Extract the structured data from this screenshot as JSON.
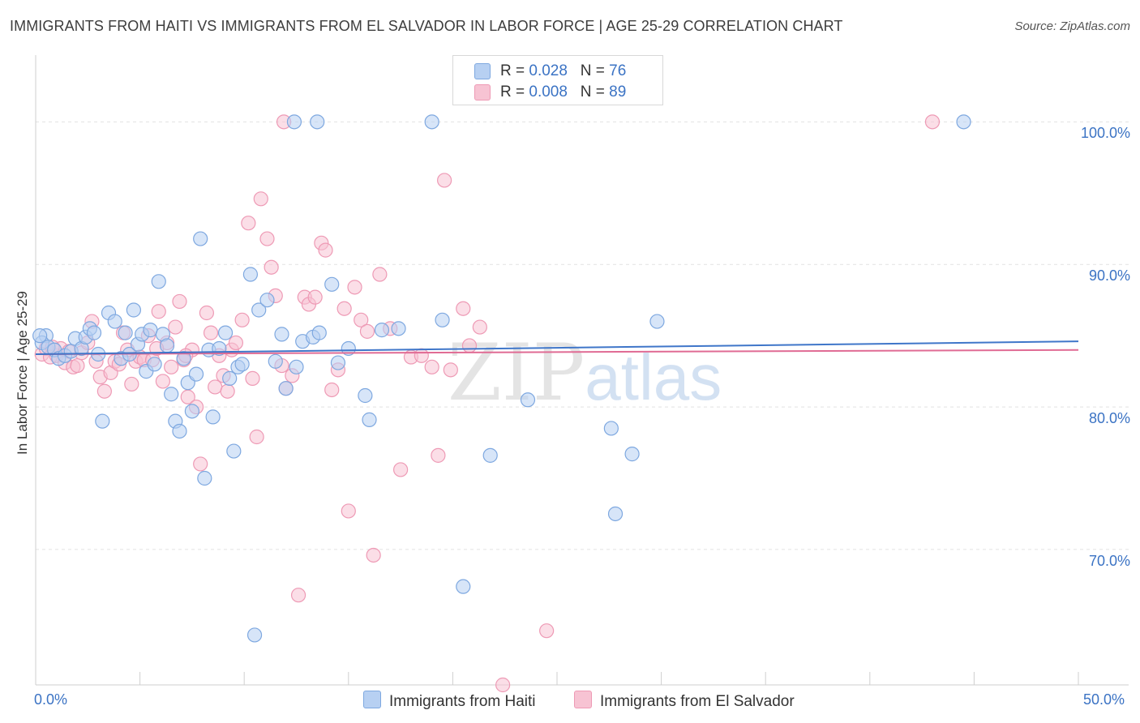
{
  "title": "IMMIGRANTS FROM HAITI VS IMMIGRANTS FROM EL SALVADOR IN LABOR FORCE | AGE 25-29 CORRELATION CHART",
  "source": "Source: ZipAtlas.com",
  "watermark": {
    "zip": "ZIP",
    "atlas": "atlas"
  },
  "legend": {
    "rows": [
      {
        "r_label": "R = ",
        "r_value": "0.028",
        "n_label": "N = ",
        "n_value": "76"
      },
      {
        "r_label": "R = ",
        "r_value": "0.008",
        "n_label": "N = ",
        "n_value": "89"
      }
    ]
  },
  "colors": {
    "haiti_fill": "#b7d0f2",
    "haiti_stroke": "#7ea8e0",
    "haiti_line": "#3f76c9",
    "salvador_fill": "#f7c3d3",
    "salvador_stroke": "#ee9ab5",
    "salvador_line": "#e06b94",
    "tick_label": "#3b73c4",
    "grid": "#e2e2e2"
  },
  "chart_data": {
    "type": "scatter",
    "xlabel": "",
    "ylabel": "In Labor Force | Age 25-29",
    "xlim": [
      0,
      50
    ],
    "ylim": [
      60.5,
      104
    ],
    "x_tick_labels": [
      "0.0%",
      "50.0%"
    ],
    "y_ticks": [
      70,
      80,
      90,
      100
    ],
    "y_tick_labels": [
      "70.0%",
      "80.0%",
      "90.0%",
      "100.0%"
    ],
    "grid": true,
    "series": [
      {
        "name": "Immigrants from Haiti",
        "trend": {
          "x": [
            0,
            50
          ],
          "y": [
            83.7,
            84.6
          ]
        },
        "points": [
          [
            0.5,
            85
          ],
          [
            0.3,
            84.5
          ],
          [
            0.6,
            84.2
          ],
          [
            0.9,
            84
          ],
          [
            1.1,
            83.4
          ],
          [
            1.4,
            83.6
          ],
          [
            1.7,
            83.9
          ],
          [
            1.9,
            84.8
          ],
          [
            2.2,
            84.1
          ],
          [
            2.4,
            84.9
          ],
          [
            2.6,
            85.5
          ],
          [
            2.8,
            85.2
          ],
          [
            3,
            83.7
          ],
          [
            3.2,
            79
          ],
          [
            3.5,
            86.6
          ],
          [
            3.8,
            86
          ],
          [
            4.1,
            83.4
          ],
          [
            4.3,
            85.2
          ],
          [
            4.5,
            83.7
          ],
          [
            4.7,
            86.8
          ],
          [
            4.9,
            84.4
          ],
          [
            5.1,
            85.1
          ],
          [
            5.3,
            82.5
          ],
          [
            5.5,
            85.4
          ],
          [
            5.7,
            83
          ],
          [
            5.9,
            88.8
          ],
          [
            6.1,
            85.1
          ],
          [
            6.3,
            84.3
          ],
          [
            6.5,
            80.9
          ],
          [
            6.7,
            79
          ],
          [
            6.9,
            78.3
          ],
          [
            7.1,
            83.4
          ],
          [
            7.3,
            81.7
          ],
          [
            7.5,
            79.7
          ],
          [
            7.7,
            82.3
          ],
          [
            7.9,
            91.8
          ],
          [
            8.1,
            75
          ],
          [
            8.3,
            84
          ],
          [
            8.5,
            79.3
          ],
          [
            8.8,
            84.1
          ],
          [
            9.1,
            85.2
          ],
          [
            9.3,
            82
          ],
          [
            9.5,
            76.9
          ],
          [
            9.7,
            82.8
          ],
          [
            9.9,
            83
          ],
          [
            10.3,
            89.3
          ],
          [
            10.7,
            86.8
          ],
          [
            11.1,
            87.5
          ],
          [
            11.5,
            83.2
          ],
          [
            11.8,
            85.1
          ],
          [
            12,
            81.3
          ],
          [
            12.5,
            82.8
          ],
          [
            12.8,
            84.6
          ],
          [
            13.3,
            84.9
          ],
          [
            13.6,
            85.2
          ],
          [
            14.2,
            88.6
          ],
          [
            14.5,
            83.1
          ],
          [
            15,
            84.1
          ],
          [
            15.8,
            80.8
          ],
          [
            16,
            79.1
          ],
          [
            16.6,
            85.4
          ],
          [
            17.4,
            85.5
          ],
          [
            19.5,
            86.1
          ],
          [
            20.5,
            67.4
          ],
          [
            21.8,
            76.6
          ],
          [
            23.6,
            80.5
          ],
          [
            27.6,
            78.5
          ],
          [
            27.8,
            72.5
          ],
          [
            28.6,
            76.7
          ],
          [
            29.8,
            86
          ],
          [
            10.5,
            64
          ],
          [
            12.4,
            100
          ],
          [
            13.5,
            100
          ],
          [
            19,
            100
          ],
          [
            44.5,
            100
          ],
          [
            0.2,
            85
          ]
        ]
      },
      {
        "name": "Immigrants from El Salvador",
        "trend": {
          "x": [
            0,
            50
          ],
          "y": [
            83.7,
            84
          ]
        },
        "points": [
          [
            0.3,
            83.7
          ],
          [
            0.5,
            84.1
          ],
          [
            0.7,
            83.5
          ],
          [
            1,
            83.6
          ],
          [
            1.2,
            84.1
          ],
          [
            1.4,
            83.1
          ],
          [
            1.6,
            83.9
          ],
          [
            1.8,
            82.8
          ],
          [
            2,
            82.9
          ],
          [
            2.2,
            83.8
          ],
          [
            2.5,
            84.5
          ],
          [
            2.7,
            86
          ],
          [
            2.9,
            83.2
          ],
          [
            3.1,
            82.1
          ],
          [
            3.3,
            81.1
          ],
          [
            3.6,
            82.4
          ],
          [
            3.8,
            83.2
          ],
          [
            4,
            83
          ],
          [
            4.2,
            85.2
          ],
          [
            4.4,
            84
          ],
          [
            4.6,
            81.6
          ],
          [
            4.8,
            83.2
          ],
          [
            5,
            83.5
          ],
          [
            5.2,
            83.3
          ],
          [
            5.4,
            85
          ],
          [
            5.6,
            83.3
          ],
          [
            5.9,
            86.7
          ],
          [
            6.1,
            81.8
          ],
          [
            6.3,
            84.5
          ],
          [
            6.5,
            82.8
          ],
          [
            6.7,
            85.6
          ],
          [
            6.9,
            87.4
          ],
          [
            7.1,
            83.3
          ],
          [
            7.3,
            80.7
          ],
          [
            7.5,
            84
          ],
          [
            7.7,
            80
          ],
          [
            7.9,
            76
          ],
          [
            8.2,
            86.6
          ],
          [
            8.4,
            85.2
          ],
          [
            8.6,
            81.4
          ],
          [
            8.8,
            83.6
          ],
          [
            9,
            82.2
          ],
          [
            9.2,
            81.1
          ],
          [
            9.4,
            84
          ],
          [
            9.6,
            84.5
          ],
          [
            9.9,
            86.1
          ],
          [
            10.2,
            92.9
          ],
          [
            10.4,
            82
          ],
          [
            10.6,
            77.9
          ],
          [
            10.8,
            94.6
          ],
          [
            11.1,
            91.8
          ],
          [
            11.3,
            89.8
          ],
          [
            11.5,
            87.8
          ],
          [
            11.8,
            82.9
          ],
          [
            12,
            81.3
          ],
          [
            12.3,
            82.2
          ],
          [
            12.6,
            66.8
          ],
          [
            12.9,
            87.7
          ],
          [
            13.1,
            87.2
          ],
          [
            13.4,
            87.7
          ],
          [
            13.7,
            91.5
          ],
          [
            13.9,
            91
          ],
          [
            14.2,
            81.2
          ],
          [
            14.5,
            82.6
          ],
          [
            14.8,
            86.9
          ],
          [
            15,
            72.7
          ],
          [
            15.3,
            88.4
          ],
          [
            15.6,
            86.1
          ],
          [
            15.9,
            85.3
          ],
          [
            16.2,
            69.6
          ],
          [
            16.5,
            89.3
          ],
          [
            17,
            85.5
          ],
          [
            17.5,
            75.6
          ],
          [
            18,
            83.5
          ],
          [
            18.5,
            83.6
          ],
          [
            19,
            82.8
          ],
          [
            19.3,
            76.6
          ],
          [
            19.6,
            95.9
          ],
          [
            19.9,
            82.6
          ],
          [
            20.5,
            86.9
          ],
          [
            20.8,
            84.3
          ],
          [
            21.3,
            85.6
          ],
          [
            22.4,
            60.5
          ],
          [
            24.5,
            64.3
          ],
          [
            11.9,
            100
          ],
          [
            43,
            100
          ],
          [
            5.8,
            84.1
          ],
          [
            7.2,
            83.6
          ],
          [
            0.8,
            84.2
          ]
        ]
      }
    ]
  },
  "bottom_legend": {
    "haiti": "Immigrants from Haiti",
    "salvador": "Immigrants from El Salvador"
  }
}
